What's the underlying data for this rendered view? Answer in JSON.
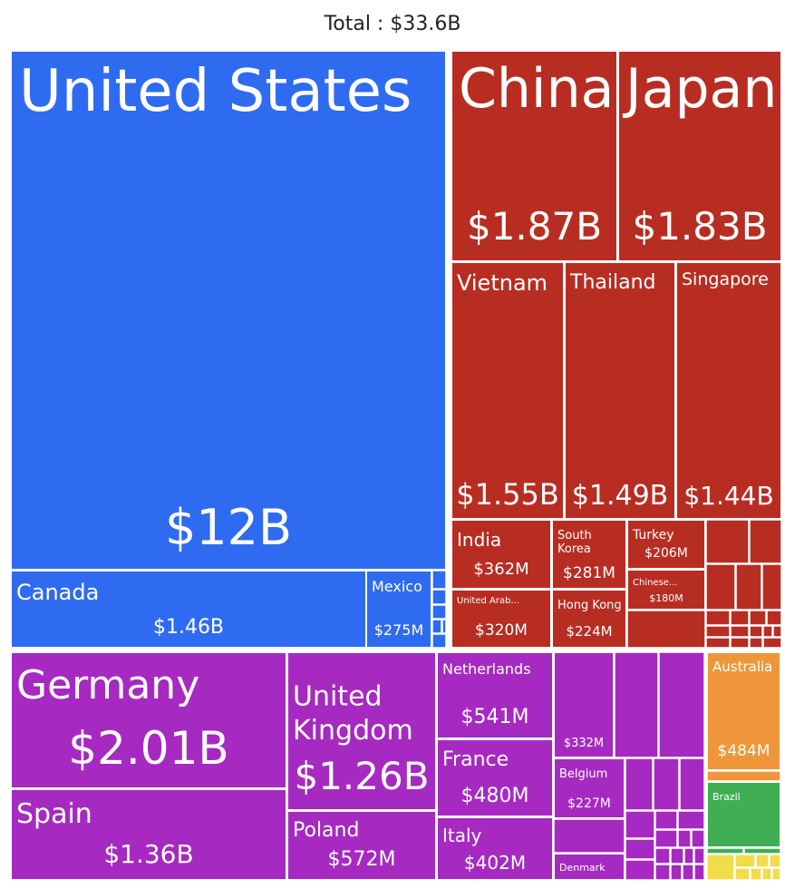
{
  "chart_data": {
    "type": "treemap",
    "title": "Total : $33.6B",
    "colors": {
      "north_america": "#2e6bf0",
      "asia": "#b82d22",
      "europe": "#a629c2",
      "oceania": "#f0963a",
      "south_america_green": "#3fae54",
      "south_america_yellow": "#f2dc48"
    },
    "items": [
      {
        "name": "United States",
        "value_label": "$12B",
        "value_b": 12.0
      },
      {
        "name": "Canada",
        "value_label": "$1.46B",
        "value_b": 1.46
      },
      {
        "name": "Mexico",
        "value_label": "$275M",
        "value_b": 0.275
      },
      {
        "name": "China",
        "value_label": "$1.87B",
        "value_b": 1.87
      },
      {
        "name": "Japan",
        "value_label": "$1.83B",
        "value_b": 1.83
      },
      {
        "name": "Vietnam",
        "value_label": "$1.55B",
        "value_b": 1.55
      },
      {
        "name": "Thailand",
        "value_label": "$1.49B",
        "value_b": 1.49
      },
      {
        "name": "Singapore",
        "value_label": "$1.44B",
        "value_b": 1.44
      },
      {
        "name": "India",
        "value_label": "$362M",
        "value_b": 0.362
      },
      {
        "name": "South Korea",
        "value_label": "$281M",
        "value_b": 0.281
      },
      {
        "name": "Turkey",
        "value_label": "$206M",
        "value_b": 0.206
      },
      {
        "name": "Chinese...",
        "value_label": "$180M",
        "value_b": 0.18
      },
      {
        "name": "United Arab...",
        "value_label": "$320M",
        "value_b": 0.32
      },
      {
        "name": "Hong Kong",
        "value_label": "$224M",
        "value_b": 0.224
      },
      {
        "name": "Germany",
        "value_label": "$2.01B",
        "value_b": 2.01
      },
      {
        "name": "Spain",
        "value_label": "$1.36B",
        "value_b": 1.36
      },
      {
        "name": "United Kingdom",
        "value_label": "$1.26B",
        "value_b": 1.26
      },
      {
        "name": "Poland",
        "value_label": "$572M",
        "value_b": 0.572
      },
      {
        "name": "Netherlands",
        "value_label": "$541M",
        "value_b": 0.541
      },
      {
        "name": "France",
        "value_label": "$480M",
        "value_b": 0.48
      },
      {
        "name": "Italy",
        "value_label": "$402M",
        "value_b": 0.402
      },
      {
        "name": "",
        "value_label": "$332M",
        "value_b": 0.332
      },
      {
        "name": "Belgium",
        "value_label": "$227M",
        "value_b": 0.227
      },
      {
        "name": "Denmark",
        "value_label": "",
        "value_b": null
      },
      {
        "name": "Australia",
        "value_label": "$484M",
        "value_b": 0.484
      },
      {
        "name": "Brazil",
        "value_label": "",
        "value_b": null
      }
    ]
  }
}
